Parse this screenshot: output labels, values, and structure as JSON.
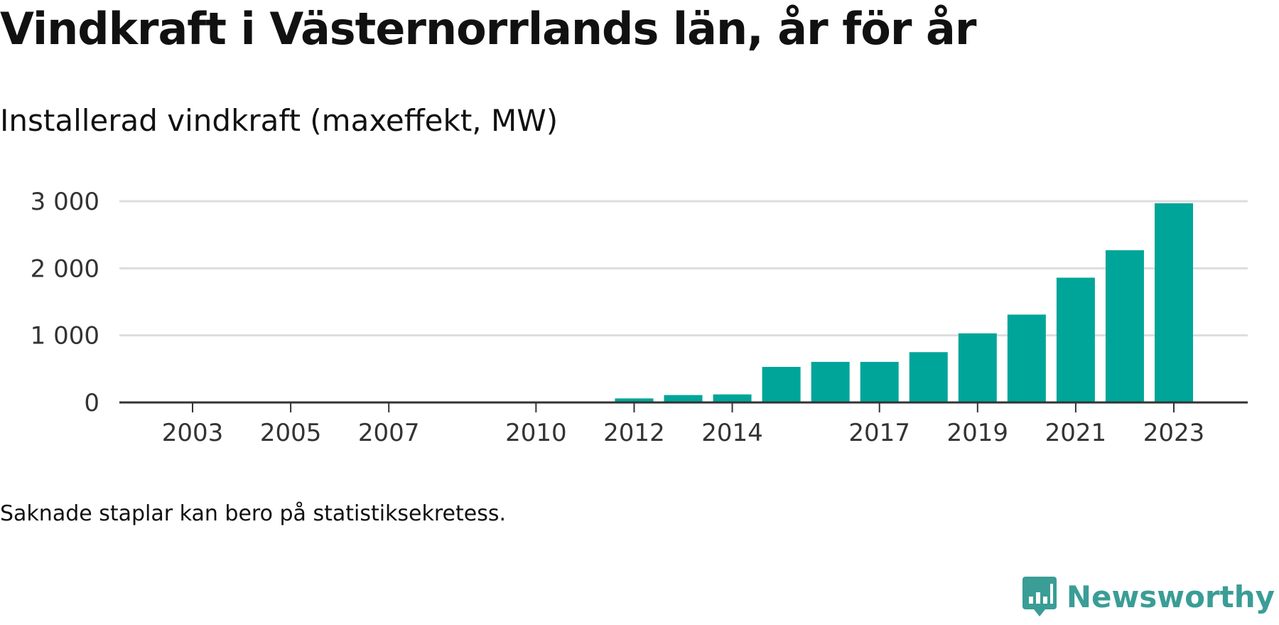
{
  "title": "Vindkraft i Västernorrlands län, år för år",
  "subtitle": "Installerad vindkraft (maxeffekt, MW)",
  "footnote": "Saknade staplar kan bero på statistiksekretess.",
  "brand": "Newsworthy",
  "colors": {
    "bar": "#00a599",
    "grid": "#dddddd",
    "axis": "#333333",
    "text": "#111111",
    "brand": "#3a9d96"
  },
  "chart_data": {
    "type": "bar",
    "categories": [
      "2003",
      "2004",
      "2005",
      "2006",
      "2007",
      "2008",
      "2009",
      "2010",
      "2011",
      "2012",
      "2013",
      "2014",
      "2015",
      "2016",
      "2017",
      "2018",
      "2019",
      "2020",
      "2021",
      "2022",
      "2023"
    ],
    "values": [
      0,
      0,
      0,
      0,
      0,
      0,
      0,
      0,
      0,
      60,
      110,
      120,
      530,
      605,
      605,
      750,
      1030,
      1310,
      1860,
      2270,
      2970
    ],
    "tick_labels": [
      "2003",
      "2005",
      "2007",
      "2010",
      "2012",
      "2014",
      "2017",
      "2019",
      "2021",
      "2023"
    ],
    "y_ticks": [
      0,
      1000,
      2000,
      3000
    ],
    "y_tick_labels": [
      "0",
      "1 000",
      "2 000",
      "3 000"
    ],
    "ylim": [
      0,
      3000
    ],
    "xlabel": "",
    "ylabel": "",
    "grid": true,
    "legend": "none"
  }
}
